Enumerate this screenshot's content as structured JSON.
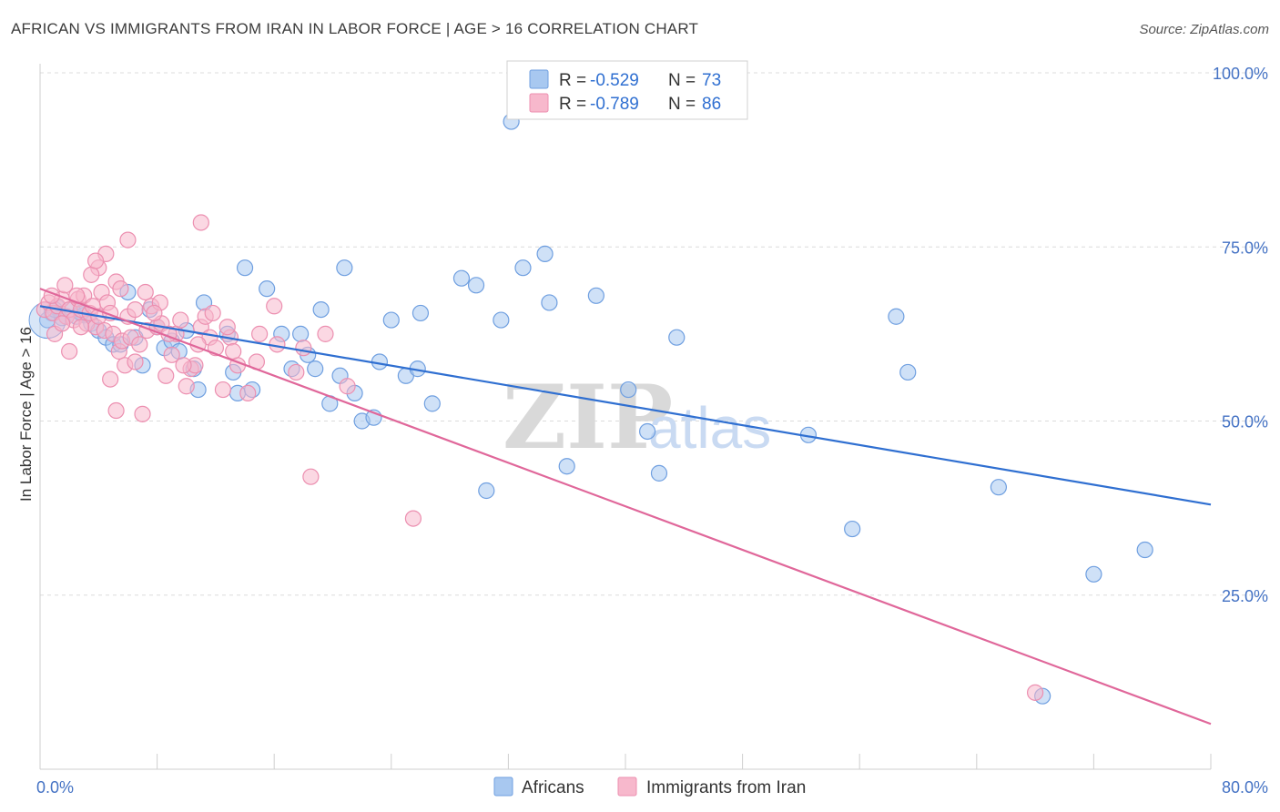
{
  "title": "AFRICAN VS IMMIGRANTS FROM IRAN IN LABOR FORCE | AGE > 16 CORRELATION CHART",
  "source": "Source: ZipAtlas.com",
  "watermark": {
    "zip": "ZIP",
    "atlas": "atlas"
  },
  "legend": {
    "rows": [
      {
        "r_label": "R = ",
        "r_value": "-0.529",
        "n_label": "N = ",
        "n_value": "73",
        "color": "#a8c8f0",
        "stroke": "#6f9fe0"
      },
      {
        "r_label": "R = ",
        "r_value": "-0.789",
        "n_label": "N = ",
        "n_value": "86",
        "color": "#f7b8cc",
        "stroke": "#ec8fb0"
      }
    ]
  },
  "bottom_legend": [
    {
      "label": "Africans",
      "color": "#a8c8f0",
      "stroke": "#6f9fe0"
    },
    {
      "label": "Immigrants from Iran",
      "color": "#f7b8cc",
      "stroke": "#ec8fb0"
    }
  ],
  "chart_data": {
    "type": "scatter",
    "title": "AFRICAN VS IMMIGRANTS FROM IRAN IN LABOR FORCE | AGE > 16 CORRELATION CHART",
    "xlabel": "",
    "ylabel": "In Labor Force | Age > 16",
    "xlim": [
      0,
      80
    ],
    "ylim": [
      0,
      102
    ],
    "x_tick_labels": [
      {
        "value": 0,
        "label": "0.0%"
      },
      {
        "value": 80,
        "label": "80.0%"
      }
    ],
    "y_tick_labels": [
      {
        "value": 25,
        "label": "25.0%"
      },
      {
        "value": 50,
        "label": "50.0%"
      },
      {
        "value": 75,
        "label": "75.0%"
      },
      {
        "value": 100,
        "label": "100.0%"
      }
    ],
    "grid": true,
    "series": [
      {
        "name": "Africans",
        "color": "#a8c8f0",
        "stroke": "#6f9fe0",
        "line_color": "#2f6fd1",
        "trend": {
          "x": [
            0,
            80
          ],
          "y": [
            66.5,
            38.0
          ]
        },
        "points": [
          [
            0.8,
            65.5
          ],
          [
            1.2,
            66.3
          ],
          [
            1.5,
            64.8
          ],
          [
            1.8,
            65.0
          ],
          [
            2.2,
            66.0
          ],
          [
            2.5,
            65.0
          ],
          [
            3.0,
            65.2
          ],
          [
            3.5,
            64.0
          ],
          [
            4.0,
            63.0
          ],
          [
            4.5,
            62.0
          ],
          [
            5.0,
            61.0
          ],
          [
            5.5,
            61.0
          ],
          [
            6.0,
            68.5
          ],
          [
            6.5,
            62.0
          ],
          [
            7.0,
            58.0
          ],
          [
            7.5,
            66.0
          ],
          [
            8.0,
            63.5
          ],
          [
            8.5,
            60.5
          ],
          [
            9.0,
            61.5
          ],
          [
            9.5,
            60.0
          ],
          [
            10.0,
            63.0
          ],
          [
            10.5,
            57.5
          ],
          [
            10.8,
            54.5
          ],
          [
            11.2,
            67.0
          ],
          [
            12.8,
            62.5
          ],
          [
            13.2,
            57.0
          ],
          [
            13.5,
            54.0
          ],
          [
            14.5,
            54.5
          ],
          [
            15.5,
            69.0
          ],
          [
            16.5,
            62.5
          ],
          [
            17.2,
            57.5
          ],
          [
            17.8,
            62.5
          ],
          [
            18.3,
            59.5
          ],
          [
            18.8,
            57.5
          ],
          [
            19.2,
            66.0
          ],
          [
            19.8,
            52.5
          ],
          [
            20.5,
            56.5
          ],
          [
            21.5,
            54.0
          ],
          [
            22.0,
            50.0
          ],
          [
            22.8,
            50.5
          ],
          [
            23.2,
            58.5
          ],
          [
            24.0,
            64.5
          ],
          [
            25.0,
            56.5
          ],
          [
            25.8,
            57.5
          ],
          [
            26.0,
            65.5
          ],
          [
            26.8,
            52.5
          ],
          [
            28.8,
            70.5
          ],
          [
            29.8,
            69.5
          ],
          [
            30.5,
            40.0
          ],
          [
            31.5,
            64.5
          ],
          [
            32.2,
            93.0
          ],
          [
            33.0,
            72.0
          ],
          [
            34.5,
            74.0
          ],
          [
            34.8,
            67.0
          ],
          [
            36.0,
            43.5
          ],
          [
            38.0,
            68.0
          ],
          [
            40.2,
            54.5
          ],
          [
            41.5,
            48.5
          ],
          [
            42.3,
            42.5
          ],
          [
            43.5,
            62.0
          ],
          [
            52.5,
            48.0
          ],
          [
            55.5,
            34.5
          ],
          [
            58.5,
            65.0
          ],
          [
            59.3,
            57.0
          ],
          [
            65.5,
            40.5
          ],
          [
            68.5,
            10.5
          ],
          [
            72.0,
            28.0
          ],
          [
            75.5,
            31.5
          ],
          [
            0.5,
            64.5
          ],
          [
            1.0,
            66.0
          ],
          [
            2.8,
            65.5
          ],
          [
            20.8,
            72.0
          ],
          [
            14.0,
            72.0
          ]
        ]
      },
      {
        "name": "Immigrants from Iran",
        "color": "#f7b8cc",
        "stroke": "#ec8fb0",
        "line_color": "#e0679a",
        "trend": {
          "x": [
            0,
            80
          ],
          "y": [
            69.0,
            6.5
          ]
        },
        "points": [
          [
            0.3,
            66.0
          ],
          [
            0.6,
            67.0
          ],
          [
            0.9,
            65.5
          ],
          [
            1.2,
            66.5
          ],
          [
            1.5,
            67.5
          ],
          [
            1.8,
            65.0
          ],
          [
            2.0,
            66.0
          ],
          [
            2.3,
            64.5
          ],
          [
            2.6,
            67.5
          ],
          [
            2.8,
            66.0
          ],
          [
            3.0,
            68.0
          ],
          [
            3.2,
            64.0
          ],
          [
            3.4,
            65.5
          ],
          [
            3.6,
            66.5
          ],
          [
            3.8,
            63.5
          ],
          [
            4.0,
            65.0
          ],
          [
            4.2,
            68.5
          ],
          [
            4.4,
            63.0
          ],
          [
            4.6,
            67.0
          ],
          [
            4.8,
            65.5
          ],
          [
            5.0,
            62.5
          ],
          [
            5.2,
            70.0
          ],
          [
            5.4,
            60.0
          ],
          [
            5.6,
            61.5
          ],
          [
            5.8,
            58.0
          ],
          [
            6.0,
            65.0
          ],
          [
            6.2,
            62.0
          ],
          [
            6.5,
            58.5
          ],
          [
            6.8,
            61.0
          ],
          [
            7.0,
            51.0
          ],
          [
            7.3,
            63.0
          ],
          [
            7.6,
            66.5
          ],
          [
            8.0,
            63.5
          ],
          [
            8.3,
            64.0
          ],
          [
            8.6,
            56.5
          ],
          [
            9.0,
            59.5
          ],
          [
            9.3,
            62.5
          ],
          [
            9.6,
            64.5
          ],
          [
            10.0,
            55.0
          ],
          [
            10.3,
            57.5
          ],
          [
            10.6,
            58.0
          ],
          [
            11.0,
            63.5
          ],
          [
            11.3,
            65.0
          ],
          [
            11.6,
            62.0
          ],
          [
            12.0,
            60.5
          ],
          [
            12.5,
            54.5
          ],
          [
            13.0,
            62.0
          ],
          [
            13.5,
            58.0
          ],
          [
            14.2,
            54.0
          ],
          [
            15.0,
            62.5
          ],
          [
            16.0,
            66.5
          ],
          [
            18.0,
            60.5
          ],
          [
            18.5,
            42.0
          ],
          [
            19.5,
            62.5
          ],
          [
            21.0,
            55.0
          ],
          [
            25.5,
            36.0
          ],
          [
            6.0,
            76.0
          ],
          [
            11.0,
            78.5
          ],
          [
            4.5,
            74.0
          ],
          [
            4.0,
            72.0
          ],
          [
            3.5,
            71.0
          ],
          [
            1.0,
            62.5
          ],
          [
            2.0,
            60.0
          ],
          [
            2.8,
            63.5
          ],
          [
            4.8,
            56.0
          ],
          [
            5.2,
            51.5
          ],
          [
            3.8,
            73.0
          ],
          [
            2.5,
            68.0
          ],
          [
            1.5,
            64.0
          ],
          [
            0.8,
            68.0
          ],
          [
            5.5,
            69.0
          ],
          [
            6.5,
            66.0
          ],
          [
            8.2,
            67.0
          ],
          [
            7.8,
            65.5
          ],
          [
            10.8,
            61.0
          ],
          [
            12.8,
            63.5
          ],
          [
            14.8,
            58.5
          ],
          [
            16.2,
            61.0
          ],
          [
            17.5,
            57.0
          ],
          [
            13.2,
            60.0
          ],
          [
            11.8,
            65.5
          ],
          [
            9.8,
            58.0
          ],
          [
            8.8,
            62.5
          ],
          [
            7.2,
            68.5
          ],
          [
            1.7,
            69.5
          ],
          [
            68.0,
            11.0
          ]
        ]
      }
    ]
  }
}
